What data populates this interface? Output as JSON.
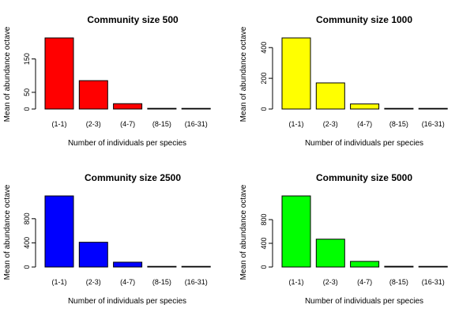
{
  "chart_data": [
    {
      "type": "bar",
      "title": "Community size 500",
      "xlabel": "Number of individuals per species",
      "ylabel": "Mean of abundance octave",
      "categories": [
        "(1-1)",
        "(2-3)",
        "(4-7)",
        "(8-15)",
        "(16-31)"
      ],
      "values": [
        213,
        85,
        16,
        2,
        0.3
      ],
      "ylim": [
        0,
        213
      ],
      "yticks": [
        0,
        50,
        150
      ],
      "bar_color": "#ff0000"
    },
    {
      "type": "bar",
      "title": "Community size 1000",
      "xlabel": "Number of individuals per species",
      "ylabel": "Mean of abundance octave",
      "categories": [
        "(1-1)",
        "(2-3)",
        "(4-7)",
        "(8-15)",
        "(16-31)"
      ],
      "values": [
        463,
        170,
        33,
        4,
        0.5
      ],
      "ylim": [
        0,
        463
      ],
      "yticks": [
        0,
        200,
        400
      ],
      "bar_color": "#ffff00"
    },
    {
      "type": "bar",
      "title": "Community size 2500",
      "xlabel": "Number of individuals per species",
      "ylabel": "Mean of abundance octave",
      "categories": [
        "(1-1)",
        "(2-3)",
        "(4-7)",
        "(8-15)",
        "(16-31)"
      ],
      "values": [
        1177,
        410,
        80,
        10,
        1
      ],
      "ylim": [
        0,
        1177
      ],
      "yticks": [
        0,
        400,
        800
      ],
      "bar_color": "#0000ff"
    },
    {
      "type": "bar",
      "title": "Community size 5000",
      "xlabel": "Number of individuals per species",
      "ylabel": "Mean of abundance octave",
      "categories": [
        "(1-1)",
        "(2-3)",
        "(4-7)",
        "(8-15)",
        "(16-31)"
      ],
      "values": [
        1200,
        470,
        95,
        12,
        1.5
      ],
      "ylim": [
        0,
        1200
      ],
      "yticks": [
        0,
        400,
        800
      ],
      "bar_color": "#00ff00"
    }
  ]
}
